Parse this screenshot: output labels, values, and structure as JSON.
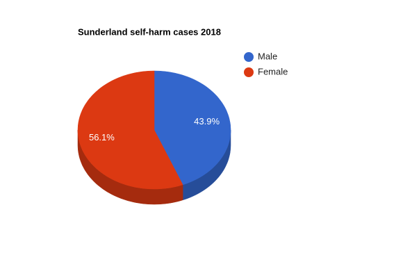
{
  "chart_data": {
    "type": "pie3d",
    "title": "Sunderland self-harm cases 2018",
    "categories": [
      "Male",
      "Female"
    ],
    "values": [
      43.9,
      56.1
    ],
    "value_labels": [
      "43.9%",
      "56.1%"
    ],
    "colors": [
      "#3366cc",
      "#dc3912"
    ],
    "legend": "right"
  }
}
